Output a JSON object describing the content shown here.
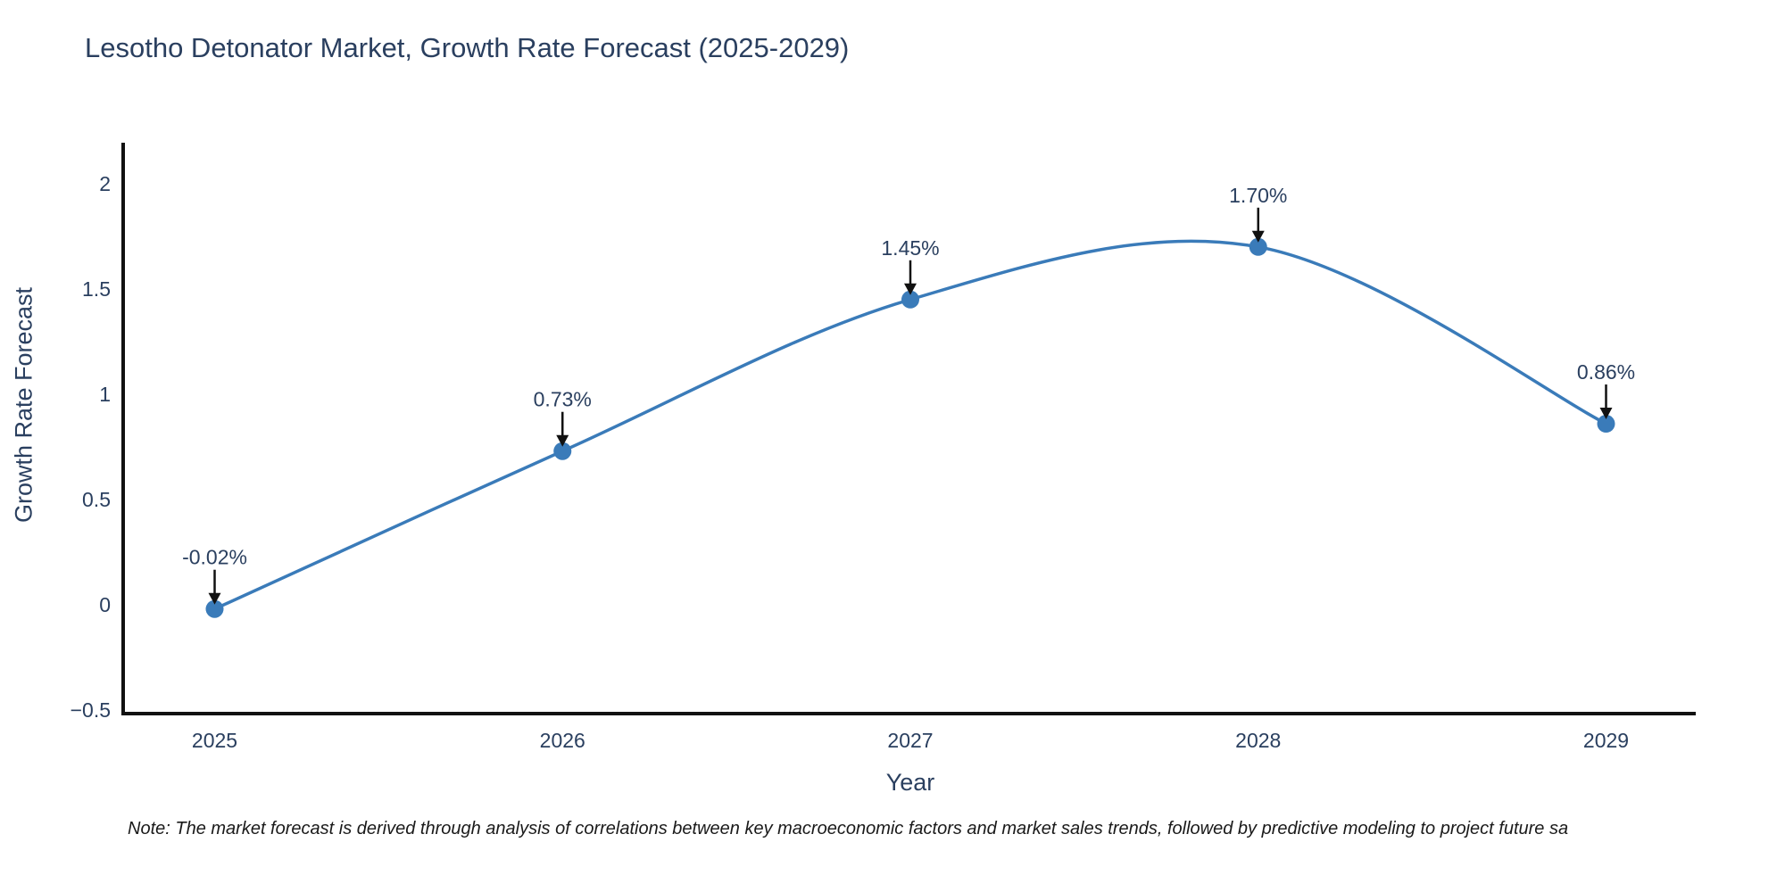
{
  "chart_data": {
    "type": "line",
    "title": "Lesotho Detonator Market, Growth Rate Forecast (2025-2029)",
    "xlabel": "Year",
    "ylabel": "Growth Rate Forecast",
    "categories": [
      "2025",
      "2026",
      "2027",
      "2028",
      "2029"
    ],
    "values": [
      -0.02,
      0.73,
      1.45,
      1.7,
      0.86
    ],
    "point_labels": [
      "-0.02%",
      "0.73%",
      "1.45%",
      "1.70%",
      "0.86%"
    ],
    "ytick_labels": [
      "2",
      "1.5",
      "1",
      "0.5",
      "0",
      "−0.5"
    ],
    "ytick_values": [
      2,
      1.5,
      1,
      0.5,
      0,
      -0.5
    ],
    "ylim": [
      -0.52,
      2.2
    ],
    "line_shape": "spline",
    "grid": false,
    "legend": "none",
    "colors": {
      "line": "#3a7bb9",
      "marker": "#3a7bb9",
      "axis": "#111111",
      "text": "#2a3f5f",
      "annotation_arrow": "#111111",
      "background": "#ffffff"
    }
  },
  "note": "Note: The market forecast is derived through analysis of correlations between key macroeconomic factors and market sales trends, followed by predictive modeling to project future sa"
}
